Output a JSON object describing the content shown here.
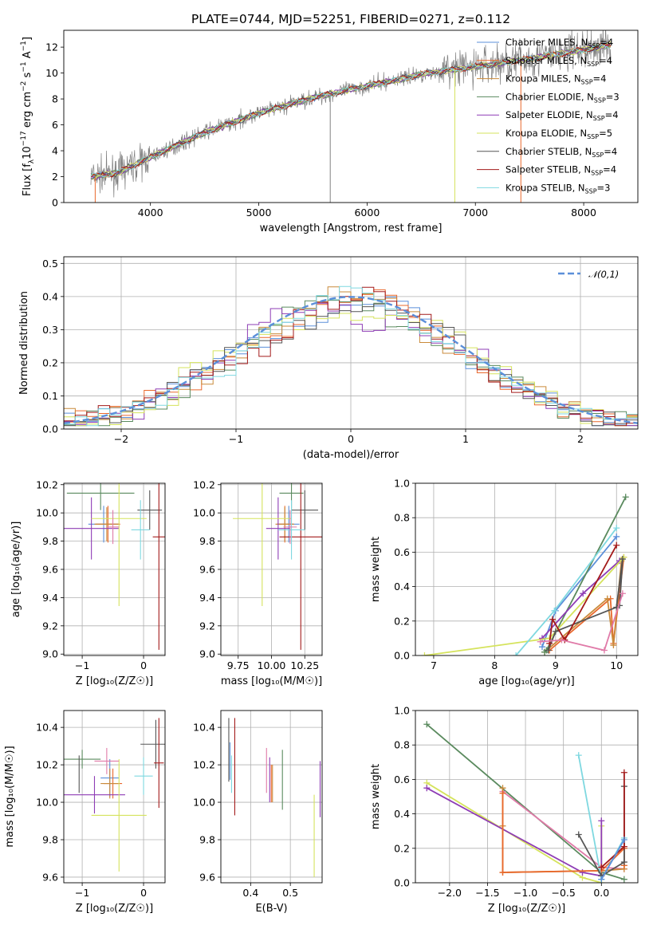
{
  "figure_title": "PLATE=0744, MJD=52251, FIBERID=0271, z=0.112",
  "colors": {
    "Chabrier MILES": "#5b8fd9",
    "Salpeter MILES": "#e9682c",
    "Kroupa MILES": "#c98a3a",
    "Chabrier ELODIE": "#5a8a5e",
    "Salpeter ELODIE": "#8e3cb5",
    "Kroupa ELODIE": "#d5e35c",
    "Chabrier STELIB": "#555555",
    "Salpeter STELIB": "#a31a1a",
    "Kroupa STELIB": "#7fd8e0",
    "pink": "#e07aa8",
    "normal": "#5b8fd9",
    "data": "#808080"
  },
  "chart_data": [
    {
      "id": "spectrum",
      "type": "line",
      "title": "PLATE=0744, MJD=52251, FIBERID=0271, z=0.112",
      "xlabel": "wavelength [Angstrom, rest frame]",
      "ylabel": "Flux [f_λ 10^-17 erg cm^-2 s^-1 A^-1]",
      "xlim": [
        3200,
        8500
      ],
      "ylim": [
        0,
        13.3
      ],
      "xticks": [
        4000,
        5000,
        6000,
        7000,
        8000
      ],
      "yticks": [
        0,
        2,
        4,
        6,
        8,
        10,
        12
      ],
      "grid": false,
      "legend_position": "upper-right",
      "legend": [
        {
          "label": "Chabrier MILES, N",
          "sub": "SSP",
          "tail": "=4",
          "series": "Chabrier MILES"
        },
        {
          "label": "Salpeter MILES, N",
          "sub": "SSP",
          "tail": "=4",
          "series": "Salpeter MILES"
        },
        {
          "label": "Kroupa MILES, N",
          "sub": "SSP",
          "tail": "=4",
          "series": "Kroupa MILES"
        },
        {
          "label": "Chabrier ELODIE, N",
          "sub": "SSP",
          "tail": "=3",
          "series": "Chabrier ELODIE"
        },
        {
          "label": "Salpeter ELODIE, N",
          "sub": "SSP",
          "tail": "=4",
          "series": "Salpeter ELODIE"
        },
        {
          "label": "Kroupa ELODIE, N",
          "sub": "SSP",
          "tail": "=5",
          "series": "Kroupa ELODIE"
        },
        {
          "label": "Chabrier STELIB, N",
          "sub": "SSP",
          "tail": "=4",
          "series": "Chabrier STELIB"
        },
        {
          "label": "Salpeter STELIB, N",
          "sub": "SSP",
          "tail": "=4",
          "series": "Salpeter STELIB"
        },
        {
          "label": "Kroupa STELIB, N",
          "sub": "SSP",
          "tail": "=3",
          "series": "Kroupa STELIB"
        }
      ],
      "continuum": {
        "x": [
          3450,
          3700,
          4000,
          4500,
          5000,
          5500,
          6000,
          6500,
          7000,
          7500,
          8000,
          8250
        ],
        "y": [
          2.0,
          2.3,
          3.5,
          5.4,
          6.9,
          8.1,
          9.0,
          9.9,
          10.5,
          11.1,
          11.8,
          12.2
        ]
      },
      "vertical_spikes": [
        {
          "x": 3490,
          "series": "Salpeter MILES"
        },
        {
          "x": 5660,
          "series": "data"
        },
        {
          "x": 6810,
          "series": "Kroupa ELODIE"
        },
        {
          "x": 7420,
          "series": "Salpeter MILES"
        }
      ]
    },
    {
      "id": "residuals",
      "type": "histogram",
      "xlabel": "(data-model)/error",
      "ylabel": "Normed distribution",
      "xlim": [
        -2.5,
        2.5
      ],
      "ylim": [
        0,
        0.52
      ],
      "xticks": [
        -2,
        -1,
        0,
        1,
        2
      ],
      "yticks": [
        0.0,
        0.1,
        0.2,
        0.3,
        0.4,
        0.5
      ],
      "grid": true,
      "legend_position": "upper-right",
      "reference_curve": {
        "label": "𝒩(0,1)",
        "mean": 0,
        "sigma": 1
      },
      "bin_width": 0.1
    },
    {
      "id": "age_vs_Z",
      "type": "errorbar",
      "xlabel": "Z [log₁₀(Z/Z☉)]",
      "ylabel": "age  [log₁₀(age/yr)]",
      "xlim": [
        -1.3,
        0.35
      ],
      "ylim": [
        8.99,
        10.21
      ],
      "xticks": [
        -1,
        0
      ],
      "yticks": [
        9.0,
        9.2,
        9.4,
        9.6,
        9.8,
        10.0,
        10.2
      ],
      "grid": true,
      "points": [
        {
          "series": "Chabrier MILES",
          "x": -0.65,
          "xerr": 0.25,
          "y": 9.92,
          "yerr": 0.13
        },
        {
          "series": "Salpeter MILES",
          "x": -0.58,
          "xerr": 0.2,
          "y": 9.92,
          "yerr": 0.13
        },
        {
          "series": "Kroupa MILES",
          "x": -0.6,
          "xerr": 0.2,
          "y": 9.92,
          "yerr": 0.12
        },
        {
          "series": "Chabrier ELODIE",
          "x": -0.7,
          "xerr": 0.55,
          "y": 10.14,
          "yerr": 0.12
        },
        {
          "series": "Salpeter ELODIE",
          "x": -0.85,
          "xerr": 0.45,
          "y": 9.89,
          "yerr": 0.22
        },
        {
          "series": "Kroupa ELODIE",
          "x": -0.4,
          "xerr": 0.45,
          "y": 9.96,
          "yerr": 0.62
        },
        {
          "series": "Chabrier STELIB",
          "x": 0.1,
          "xerr": 0.2,
          "y": 10.02,
          "yerr": 0.14
        },
        {
          "series": "Salpeter STELIB",
          "x": 0.25,
          "xerr": 0.1,
          "y": 9.83,
          "yerr": 0.8
        },
        {
          "series": "Kroupa STELIB",
          "x": -0.05,
          "xerr": 0.15,
          "y": 9.88,
          "yerr": 0.21
        },
        {
          "series": "pink",
          "x": -0.5,
          "xerr": 0.1,
          "y": 9.9,
          "yerr": 0.12
        }
      ]
    },
    {
      "id": "age_vs_mass",
      "type": "errorbar",
      "xlabel": "mass [log₁₀(M/M☉)]",
      "ylabel": "",
      "xlim": [
        9.62,
        10.38
      ],
      "ylim": [
        8.99,
        10.21
      ],
      "xticks": [
        9.75,
        10.0,
        10.25
      ],
      "xticklabels": [
        "9.75",
        "10.00",
        "10.25"
      ],
      "yticks": [
        9.0,
        9.2,
        9.4,
        9.6,
        9.8,
        10.0,
        10.2
      ],
      "grid": true,
      "points": [
        {
          "series": "Chabrier MILES",
          "x": 10.13,
          "xerr": 0.08,
          "y": 9.92,
          "yerr": 0.13
        },
        {
          "series": "Salpeter MILES",
          "x": 10.1,
          "xerr": 0.06,
          "y": 9.92,
          "yerr": 0.13
        },
        {
          "series": "Kroupa MILES",
          "x": 10.1,
          "xerr": 0.07,
          "y": 9.92,
          "yerr": 0.12
        },
        {
          "series": "Chabrier ELODIE",
          "x": 10.15,
          "xerr": 0.09,
          "y": 10.14,
          "yerr": 0.12
        },
        {
          "series": "Salpeter ELODIE",
          "x": 10.05,
          "xerr": 0.09,
          "y": 9.89,
          "yerr": 0.22
        },
        {
          "series": "Kroupa ELODIE",
          "x": 9.93,
          "xerr": 0.22,
          "y": 9.96,
          "yerr": 0.62
        },
        {
          "series": "Chabrier STELIB",
          "x": 10.25,
          "xerr": 0.1,
          "y": 10.02,
          "yerr": 0.14
        },
        {
          "series": "Salpeter STELIB",
          "x": 10.22,
          "xerr": 0.16,
          "y": 9.83,
          "yerr": 0.8
        },
        {
          "series": "Kroupa STELIB",
          "x": 10.15,
          "xerr": 0.1,
          "y": 9.88,
          "yerr": 0.21
        },
        {
          "series": "pink",
          "x": 10.14,
          "xerr": 0.05,
          "y": 9.9,
          "yerr": 0.12
        }
      ]
    },
    {
      "id": "weight_vs_age",
      "type": "line",
      "xlabel": "age  [log₁₀(age/yr)]",
      "ylabel": "mass weight",
      "xlim": [
        6.7,
        10.35
      ],
      "ylim": [
        0,
        1.0
      ],
      "xticks": [
        7,
        8,
        9,
        10
      ],
      "yticks": [
        0.0,
        0.2,
        0.4,
        0.6,
        0.8,
        1.0
      ],
      "grid": true,
      "series": [
        {
          "name": "Chabrier MILES",
          "x": [
            8.78,
            9.0,
            10.0
          ],
          "y": [
            0.05,
            0.26,
            0.69
          ]
        },
        {
          "name": "Salpeter MILES",
          "x": [
            8.9,
            9.9,
            9.95,
            10.12
          ],
          "y": [
            0.03,
            0.33,
            0.07,
            0.57
          ]
        },
        {
          "name": "Kroupa MILES",
          "x": [
            8.82,
            9.85,
            9.95,
            10.08
          ],
          "y": [
            0.02,
            0.33,
            0.06,
            0.55
          ]
        },
        {
          "name": "Chabrier ELODIE",
          "x": [
            8.82,
            8.85,
            10.15
          ],
          "y": [
            0.02,
            0.03,
            0.92
          ]
        },
        {
          "name": "Salpeter ELODIE",
          "x": [
            8.78,
            9.45,
            10.05
          ],
          "y": [
            0.1,
            0.36,
            0.55
          ]
        },
        {
          "name": "Kroupa ELODIE",
          "x": [
            6.85,
            8.9,
            10.12
          ],
          "y": [
            0.0,
            0.1,
            0.57
          ]
        },
        {
          "name": "Chabrier STELIB",
          "x": [
            8.88,
            9.0,
            10.0,
            10.1,
            10.05
          ],
          "y": [
            0.03,
            0.14,
            0.28,
            0.56,
            0.29
          ]
        },
        {
          "name": "Salpeter STELIB",
          "x": [
            8.9,
            8.95,
            9.15,
            10.0
          ],
          "y": [
            0.07,
            0.21,
            0.09,
            0.64
          ]
        },
        {
          "name": "Kroupa STELIB",
          "x": [
            8.35,
            8.98,
            10.0
          ],
          "y": [
            0.0,
            0.26,
            0.74
          ]
        },
        {
          "name": "pink",
          "x": [
            8.75,
            9.1,
            9.8,
            10.1
          ],
          "y": [
            0.08,
            0.09,
            0.03,
            0.36
          ]
        }
      ]
    },
    {
      "id": "mass_vs_Z",
      "type": "errorbar",
      "xlabel": "Z [log₁₀(Z/Z☉)]",
      "ylabel": "mass [log₁₀(M/M☉)]",
      "xlim": [
        -1.3,
        0.35
      ],
      "ylim": [
        9.57,
        10.49
      ],
      "xticks": [
        -1,
        0
      ],
      "yticks": [
        9.6,
        9.8,
        10.0,
        10.2,
        10.4
      ],
      "grid": true,
      "points": [
        {
          "series": "Chabrier MILES",
          "x": -0.55,
          "xerr": 0.15,
          "y": 10.13,
          "yerr": 0.1
        },
        {
          "series": "Salpeter MILES",
          "x": -0.5,
          "xerr": 0.15,
          "y": 10.1,
          "yerr": 0.08
        },
        {
          "series": "Kroupa MILES",
          "x": -0.55,
          "xerr": 0.15,
          "y": 10.1,
          "yerr": 0.08
        },
        {
          "series": "Chabrier ELODIE",
          "x": -1.0,
          "xerr": 0.3,
          "y": 10.23,
          "yerr": 0.05
        },
        {
          "series": "Salpeter ELODIE",
          "x": -0.8,
          "xerr": 0.5,
          "y": 10.04,
          "yerr": 0.1
        },
        {
          "series": "Kroupa ELODIE",
          "x": -0.4,
          "xerr": 0.45,
          "y": 9.93,
          "yerr": 0.3
        },
        {
          "series": "Chabrier STELIB",
          "x": 0.2,
          "xerr": 0.25,
          "y": 10.31,
          "yerr": 0.13
        },
        {
          "series": "Salpeter STELIB",
          "x": 0.25,
          "xerr": 0.08,
          "y": 10.21,
          "yerr": 0.24
        },
        {
          "series": "Kroupa STELIB",
          "x": 0.0,
          "xerr": 0.15,
          "y": 10.14,
          "yerr": 0.1
        },
        {
          "series": "pink",
          "x": -0.6,
          "xerr": 0.2,
          "y": 10.22,
          "yerr": 0.07
        },
        {
          "series": "Chabrier STELIB",
          "x": -1.05,
          "xerr": 0.0,
          "y": 10.15,
          "yerr": 0.1
        }
      ]
    },
    {
      "id": "mass_vs_ebv",
      "type": "errorbar",
      "xlabel": "E(B-V)",
      "ylabel": "",
      "xlim": [
        0.325,
        0.58
      ],
      "ylim": [
        9.57,
        10.49
      ],
      "xticks": [
        0.4,
        0.5
      ],
      "yticks": [
        9.6,
        9.8,
        10.0,
        10.2,
        10.4
      ],
      "grid": true,
      "points": [
        {
          "series": "Chabrier STELIB",
          "x": 0.345,
          "y": 10.28,
          "yerr": 0.17
        },
        {
          "series": "Chabrier MILES",
          "x": 0.348,
          "y": 10.22,
          "yerr": 0.1
        },
        {
          "series": "Kroupa STELIB",
          "x": 0.352,
          "y": 10.15,
          "yerr": 0.1
        },
        {
          "series": "Salpeter STELIB",
          "x": 0.36,
          "y": 10.19,
          "yerr": 0.26
        },
        {
          "series": "pink",
          "x": 0.44,
          "y": 10.17,
          "yerr": 0.12
        },
        {
          "series": "Salpeter ELODIE",
          "x": 0.448,
          "y": 10.12,
          "yerr": 0.12
        },
        {
          "series": "Salpeter MILES",
          "x": 0.452,
          "y": 10.1,
          "yerr": 0.1
        },
        {
          "series": "Kroupa MILES",
          "x": 0.455,
          "y": 10.1,
          "yerr": 0.1
        },
        {
          "series": "Chabrier ELODIE",
          "x": 0.48,
          "y": 10.12,
          "yerr": 0.16
        },
        {
          "series": "Kroupa ELODIE",
          "x": 0.56,
          "y": 9.82,
          "yerr": 0.22
        },
        {
          "series": "Salpeter ELODIE",
          "x": 0.575,
          "y": 10.07,
          "yerr": 0.15
        }
      ]
    },
    {
      "id": "weight_vs_Z",
      "type": "line",
      "xlabel": "Z [log₁₀(Z/Z☉)]",
      "ylabel": "mass weight",
      "xlim": [
        -2.45,
        0.48
      ],
      "ylim": [
        0,
        1.0
      ],
      "xticks": [
        -2.0,
        -1.5,
        -1.0,
        -0.5,
        0.0
      ],
      "xticklabels": [
        "−2.0",
        "−1.5",
        "−1.0",
        "−0.5",
        "0.0"
      ],
      "yticks": [
        0.0,
        0.2,
        0.4,
        0.6,
        0.8,
        1.0
      ],
      "grid": true,
      "series": [
        {
          "name": "Chabrier ELODIE",
          "x": [
            -2.3,
            0.0,
            0.3
          ],
          "y": [
            0.92,
            0.06,
            0.02
          ]
        },
        {
          "name": "Kroupa ELODIE",
          "x": [
            -2.3,
            -0.25,
            0.0,
            0.0
          ],
          "y": [
            0.58,
            0.03,
            0.0,
            0.33
          ]
        },
        {
          "name": "Salpeter ELODIE",
          "x": [
            -2.3,
            -0.25,
            0.0,
            0.0
          ],
          "y": [
            0.55,
            0.06,
            0.04,
            0.36
          ]
        },
        {
          "name": "pink",
          "x": [
            -1.3,
            0.0,
            0.3
          ],
          "y": [
            0.53,
            0.09,
            0.08
          ]
        },
        {
          "name": "Kroupa MILES",
          "x": [
            -1.3,
            -1.3,
            -1.3,
            0.0,
            0.3,
            0.3
          ],
          "y": [
            0.55,
            0.33,
            0.06,
            0.07,
            0.08,
            0.1
          ]
        },
        {
          "name": "Salpeter MILES",
          "x": [
            -1.3,
            -1.3,
            0.0,
            0.3,
            0.3
          ],
          "y": [
            0.52,
            0.06,
            0.07,
            0.2,
            0.1
          ]
        },
        {
          "name": "Kroupa STELIB",
          "x": [
            -0.3,
            0.0,
            0.3
          ],
          "y": [
            0.74,
            0.02,
            0.26
          ]
        },
        {
          "name": "Chabrier STELIB",
          "x": [
            -0.3,
            0.0,
            0.3,
            0.3
          ],
          "y": [
            0.28,
            0.04,
            0.12,
            0.56
          ]
        },
        {
          "name": "Salpeter STELIB",
          "x": [
            0.0,
            0.3,
            0.3
          ],
          "y": [
            0.09,
            0.21,
            0.64
          ]
        },
        {
          "name": "Chabrier MILES",
          "x": [
            0.0,
            0.3
          ],
          "y": [
            0.02,
            0.25
          ]
        }
      ]
    }
  ]
}
